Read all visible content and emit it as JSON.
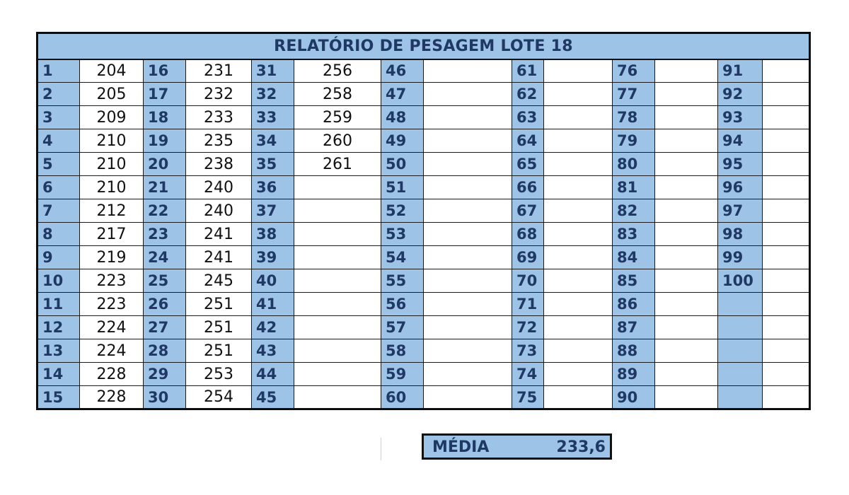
{
  "report": {
    "title": "RELATÓRIO DE PESAGEM LOTE 18",
    "entries": [
      {
        "n": "1",
        "w": "204"
      },
      {
        "n": "2",
        "w": "205"
      },
      {
        "n": "3",
        "w": "209"
      },
      {
        "n": "4",
        "w": "210"
      },
      {
        "n": "5",
        "w": "210"
      },
      {
        "n": "6",
        "w": "210"
      },
      {
        "n": "7",
        "w": "212"
      },
      {
        "n": "8",
        "w": "217"
      },
      {
        "n": "9",
        "w": "219"
      },
      {
        "n": "10",
        "w": "223"
      },
      {
        "n": "11",
        "w": "223"
      },
      {
        "n": "12",
        "w": "224"
      },
      {
        "n": "13",
        "w": "224"
      },
      {
        "n": "14",
        "w": "228"
      },
      {
        "n": "15",
        "w": "228"
      },
      {
        "n": "16",
        "w": "231"
      },
      {
        "n": "17",
        "w": "232"
      },
      {
        "n": "18",
        "w": "233"
      },
      {
        "n": "19",
        "w": "235"
      },
      {
        "n": "20",
        "w": "238"
      },
      {
        "n": "21",
        "w": "240"
      },
      {
        "n": "22",
        "w": "240"
      },
      {
        "n": "23",
        "w": "241"
      },
      {
        "n": "24",
        "w": "241"
      },
      {
        "n": "25",
        "w": "245"
      },
      {
        "n": "26",
        "w": "251"
      },
      {
        "n": "27",
        "w": "251"
      },
      {
        "n": "28",
        "w": "251"
      },
      {
        "n": "29",
        "w": "253"
      },
      {
        "n": "30",
        "w": "254"
      },
      {
        "n": "31",
        "w": "256"
      },
      {
        "n": "32",
        "w": "258"
      },
      {
        "n": "33",
        "w": "259"
      },
      {
        "n": "34",
        "w": "260"
      },
      {
        "n": "35",
        "w": "261"
      },
      {
        "n": "36",
        "w": ""
      },
      {
        "n": "37",
        "w": ""
      },
      {
        "n": "38",
        "w": ""
      },
      {
        "n": "39",
        "w": ""
      },
      {
        "n": "40",
        "w": ""
      },
      {
        "n": "41",
        "w": ""
      },
      {
        "n": "42",
        "w": ""
      },
      {
        "n": "43",
        "w": ""
      },
      {
        "n": "44",
        "w": ""
      },
      {
        "n": "45",
        "w": ""
      },
      {
        "n": "46",
        "w": ""
      },
      {
        "n": "47",
        "w": ""
      },
      {
        "n": "48",
        "w": ""
      },
      {
        "n": "49",
        "w": ""
      },
      {
        "n": "50",
        "w": ""
      },
      {
        "n": "51",
        "w": ""
      },
      {
        "n": "52",
        "w": ""
      },
      {
        "n": "53",
        "w": ""
      },
      {
        "n": "54",
        "w": ""
      },
      {
        "n": "55",
        "w": ""
      },
      {
        "n": "56",
        "w": ""
      },
      {
        "n": "57",
        "w": ""
      },
      {
        "n": "58",
        "w": ""
      },
      {
        "n": "59",
        "w": ""
      },
      {
        "n": "60",
        "w": ""
      },
      {
        "n": "61",
        "w": ""
      },
      {
        "n": "62",
        "w": ""
      },
      {
        "n": "63",
        "w": ""
      },
      {
        "n": "64",
        "w": ""
      },
      {
        "n": "65",
        "w": ""
      },
      {
        "n": "66",
        "w": ""
      },
      {
        "n": "67",
        "w": ""
      },
      {
        "n": "68",
        "w": ""
      },
      {
        "n": "69",
        "w": ""
      },
      {
        "n": "70",
        "w": ""
      },
      {
        "n": "71",
        "w": ""
      },
      {
        "n": "72",
        "w": ""
      },
      {
        "n": "73",
        "w": ""
      },
      {
        "n": "74",
        "w": ""
      },
      {
        "n": "75",
        "w": ""
      },
      {
        "n": "76",
        "w": ""
      },
      {
        "n": "77",
        "w": ""
      },
      {
        "n": "78",
        "w": ""
      },
      {
        "n": "79",
        "w": ""
      },
      {
        "n": "80",
        "w": ""
      },
      {
        "n": "81",
        "w": ""
      },
      {
        "n": "82",
        "w": ""
      },
      {
        "n": "83",
        "w": ""
      },
      {
        "n": "84",
        "w": ""
      },
      {
        "n": "85",
        "w": ""
      },
      {
        "n": "86",
        "w": ""
      },
      {
        "n": "87",
        "w": ""
      },
      {
        "n": "88",
        "w": ""
      },
      {
        "n": "89",
        "w": ""
      },
      {
        "n": "90",
        "w": ""
      },
      {
        "n": "91",
        "w": ""
      },
      {
        "n": "92",
        "w": ""
      },
      {
        "n": "93",
        "w": ""
      },
      {
        "n": "94",
        "w": ""
      },
      {
        "n": "95",
        "w": ""
      },
      {
        "n": "96",
        "w": ""
      },
      {
        "n": "97",
        "w": ""
      },
      {
        "n": "98",
        "w": ""
      },
      {
        "n": "99",
        "w": ""
      },
      {
        "n": "100",
        "w": ""
      },
      {
        "n": "",
        "w": ""
      },
      {
        "n": "",
        "w": ""
      },
      {
        "n": "",
        "w": ""
      },
      {
        "n": "",
        "w": ""
      },
      {
        "n": "",
        "w": ""
      }
    ],
    "summary": {
      "label": "MÉDIA",
      "value": "233,6"
    }
  },
  "colors": {
    "header_fill": "#9dc3e6",
    "header_text": "#1f3864",
    "border": "#111111"
  }
}
